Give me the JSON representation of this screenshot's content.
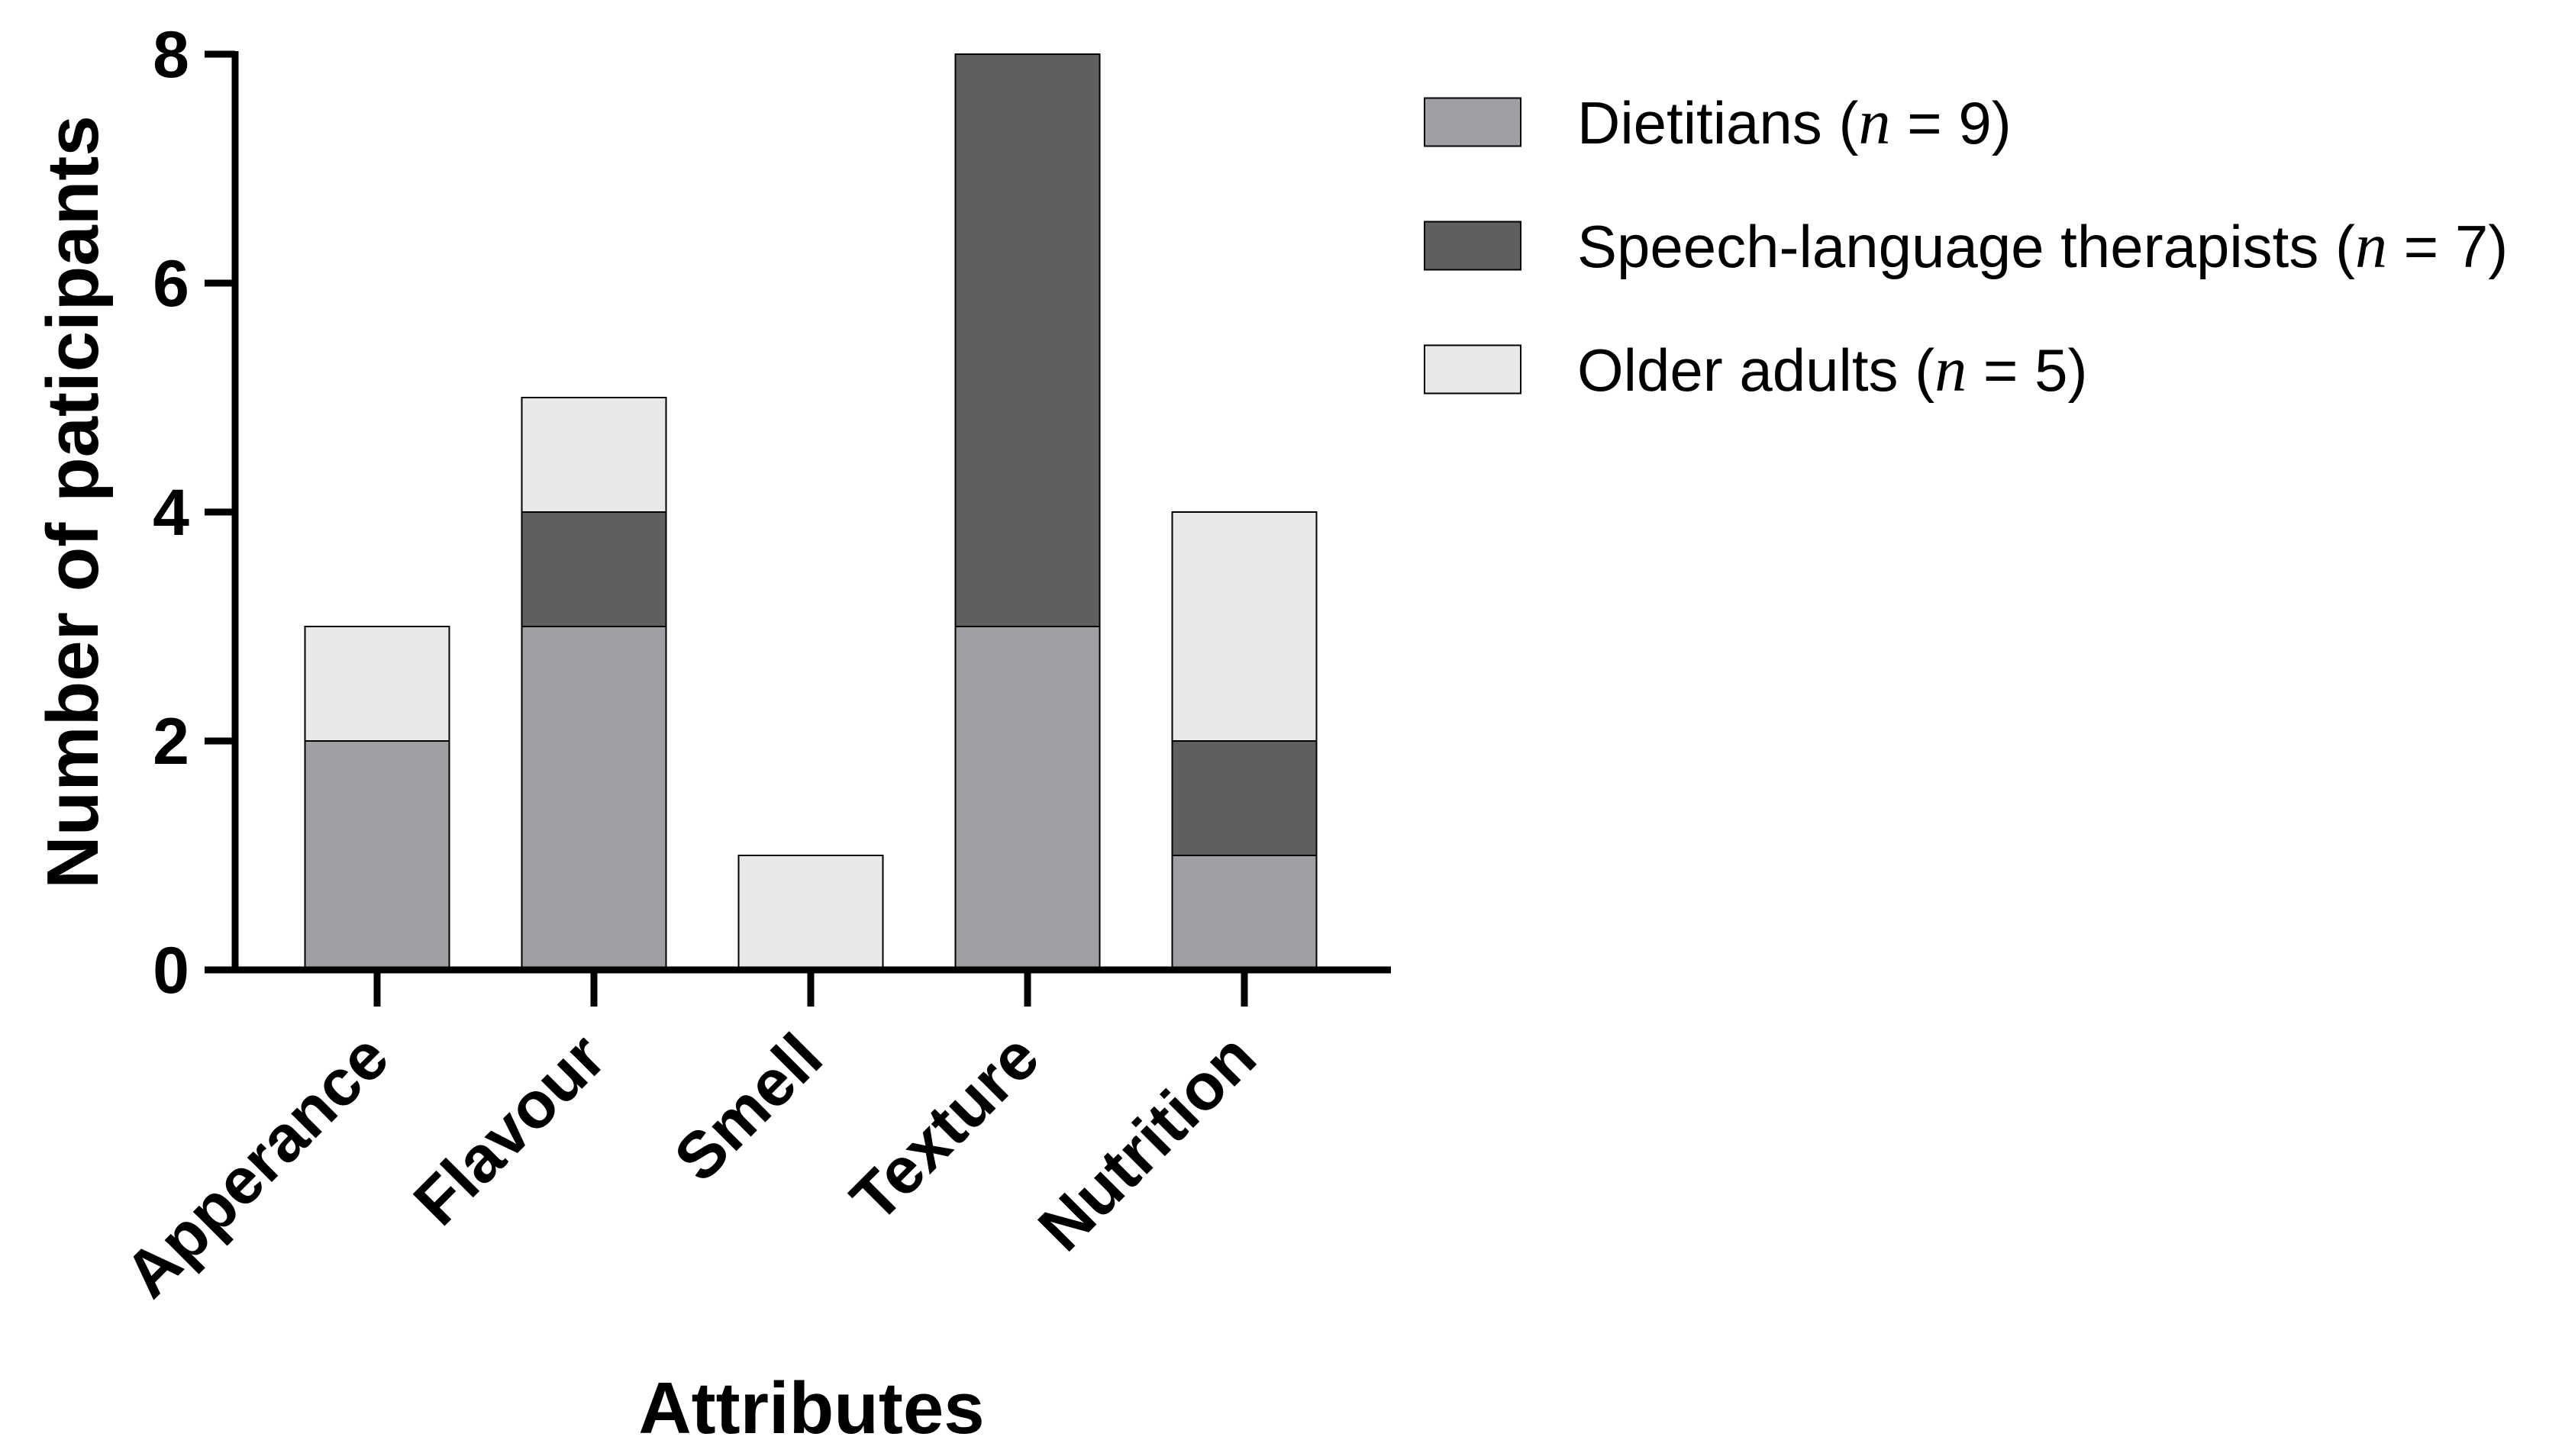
{
  "chart_data": {
    "type": "bar",
    "stacked": true,
    "categories": [
      "Apperance",
      "Flavour",
      "Smell",
      "Texture",
      "Nutrition"
    ],
    "series": [
      {
        "name": "Dietitians",
        "n_label": "n",
        "n_value": "= 9)",
        "legend_prefix": "Dietitians (",
        "color": "#a0a0a4",
        "values": [
          2,
          3,
          0,
          3,
          1
        ]
      },
      {
        "name": "Speech-language therapists",
        "n_label": "n",
        "n_value": "= 7)",
        "legend_prefix": "Speech-language therapists (",
        "color": "#5f5f5f",
        "values": [
          0,
          1,
          0,
          5,
          1
        ]
      },
      {
        "name": "Older adults",
        "n_label": "n",
        "n_value": "= 5)",
        "legend_prefix": "Older adults (",
        "color": "#e8e8e8",
        "values": [
          1,
          1,
          1,
          0,
          2
        ]
      }
    ],
    "xlabel": "Attributes",
    "ylabel": "Number of paticipants",
    "ylim": [
      0,
      8
    ],
    "yticks": [
      "0",
      "2",
      "4",
      "6",
      "8"
    ],
    "grid": false,
    "legend_position": "right"
  }
}
